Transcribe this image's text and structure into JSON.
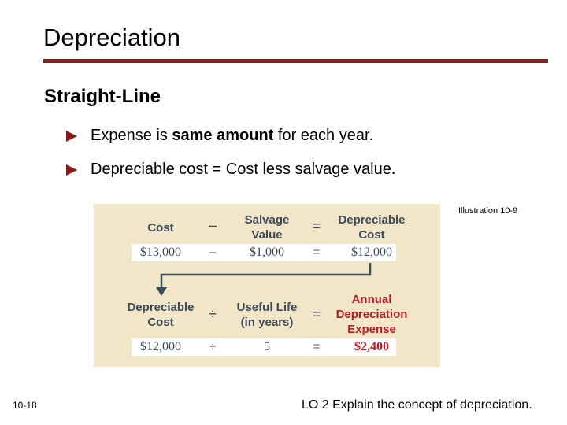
{
  "slide": {
    "title": "Depreciation",
    "subtitle": "Straight-Line",
    "bullets": [
      {
        "before": "Expense is ",
        "bold": "same amount",
        "after": " for each year."
      },
      {
        "before": "Depreciable cost = Cost less salvage value.",
        "bold": "",
        "after": ""
      }
    ],
    "illustration_ref": "Illustration 10-9",
    "slide_number": "10-18",
    "learning_objective": "LO 2  Explain the concept of depreciation."
  },
  "figure": {
    "row1": {
      "labels": [
        "Cost",
        "Salvage\nValue",
        "Depreciable\nCost"
      ],
      "operators": [
        "–",
        "="
      ],
      "values": [
        "$13,000",
        "$1,000",
        "$12,000"
      ]
    },
    "row2": {
      "labels": [
        "Depreciable\nCost",
        "Useful Life\n(in years)",
        "Annual\nDepreciation\nExpense"
      ],
      "operators": [
        "÷",
        "="
      ],
      "values": [
        "$12,000",
        "5",
        "$2,400"
      ]
    },
    "colors": {
      "accent": "#8b1a1a",
      "figure_bg": "#f1e6c8",
      "label": "#3d4a5a",
      "highlight": "#b5202a"
    }
  }
}
